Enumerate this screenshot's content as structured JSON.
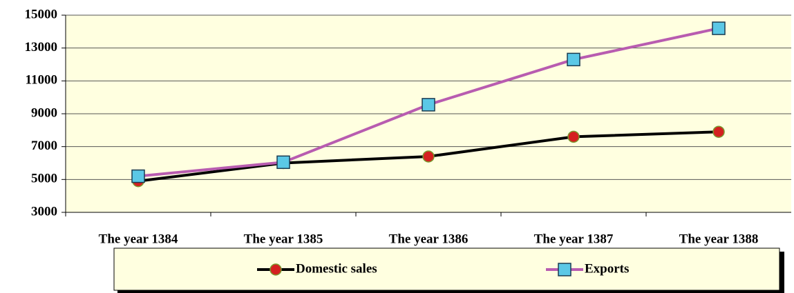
{
  "chart_data": {
    "type": "line",
    "categories": [
      "The year 1384",
      "The year 1385",
      "The year 1386",
      "The year 1387",
      "The year 1388"
    ],
    "series": [
      {
        "name": "Domestic sales",
        "color": "#000000",
        "marker_color": "#d42020",
        "marker": "circle",
        "values": [
          4900,
          6000,
          6400,
          7600,
          7900
        ]
      },
      {
        "name": "Exports",
        "color": "#b85cb0",
        "marker_color": "#5bc8e6",
        "marker": "square",
        "values": [
          5200,
          6050,
          9550,
          12300,
          14200
        ]
      }
    ],
    "ylim": [
      3000,
      15000
    ],
    "yticks": [
      3000,
      5000,
      7000,
      9000,
      11000,
      13000,
      15000
    ],
    "grid": true,
    "legend": "bottom",
    "plot_background": "#ffffe0"
  }
}
